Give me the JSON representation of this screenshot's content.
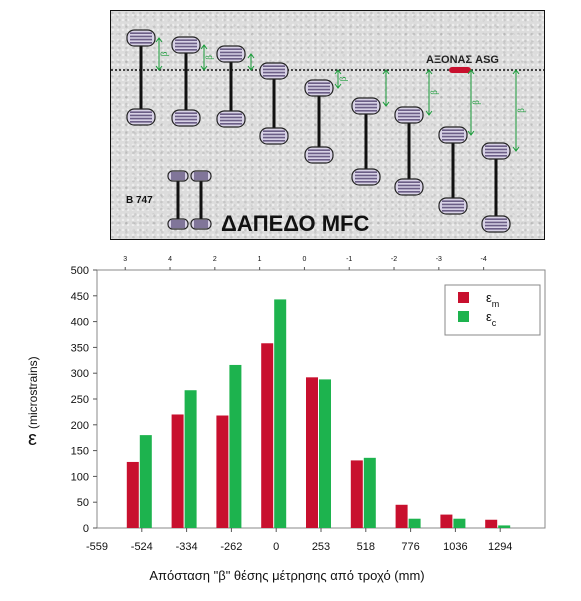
{
  "figure": {
    "title": "ΔΑΠΕΔΟ MFC",
    "axis_label": "ΑΞΟΝΑΣ ASG",
    "aircraft_label": "B 747",
    "beta_symbol": "β"
  },
  "chart_data": {
    "type": "bar",
    "categories": [
      "-524",
      "-334",
      "-262",
      "0",
      "253",
      "518",
      "776",
      "1036",
      "1294"
    ],
    "extra_x_tick": "-559",
    "top_axis_labels": [
      "3",
      "4",
      "2",
      "1",
      "0",
      "-1",
      "-2",
      "-3",
      "-4"
    ],
    "series": [
      {
        "name_main": "ε",
        "name_sub": "m",
        "color": "#c8102e",
        "values": [
          128,
          220,
          218,
          358,
          292,
          131,
          45,
          26,
          16
        ]
      },
      {
        "name_main": "ε",
        "name_sub": "c",
        "color": "#1db34e",
        "values": [
          180,
          267,
          316,
          443,
          288,
          136,
          18,
          18,
          5
        ]
      }
    ],
    "ylabel_symbol": "ε",
    "ylabel_text": "(microstrains)",
    "xlabel": "Απόσταση \"β\" θέσης μέτρησης από τροχό (mm)",
    "ylim": [
      0,
      500
    ],
    "yticks": [
      0,
      50,
      100,
      150,
      200,
      250,
      300,
      350,
      400,
      450,
      500
    ],
    "grid": false,
    "legend_position": "top-right"
  }
}
